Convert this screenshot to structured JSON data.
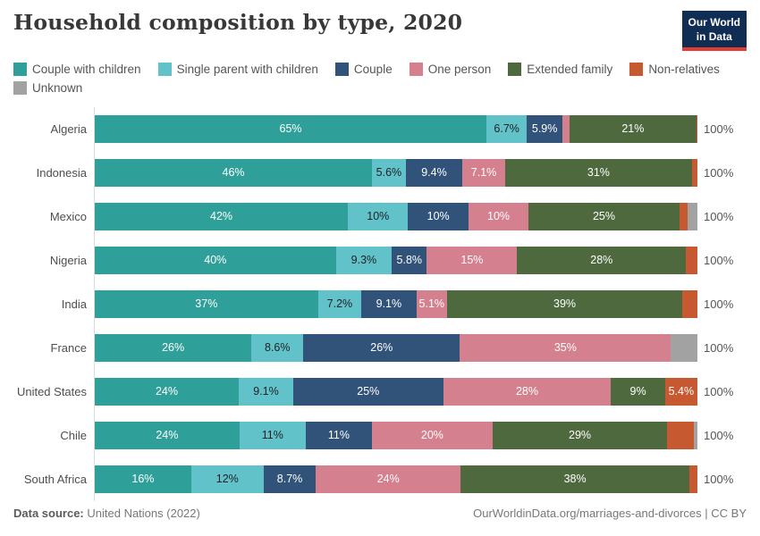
{
  "header": {
    "title": "Household composition by type, 2020",
    "logo_line1": "Our World",
    "logo_line2": "in Data"
  },
  "colors": {
    "logo_bg": "#102d54",
    "logo_stripe": "#e23d33",
    "axis_line": "#dcdcdc",
    "title_text": "#383838",
    "muted_text": "#555555"
  },
  "chart_data": {
    "type": "bar",
    "orientation": "horizontal-stacked",
    "title": "Household composition by type, 2020",
    "xlim": [
      0,
      100
    ],
    "legend_position": "top",
    "grid": false,
    "total_label": "100%",
    "categories": [
      "Algeria",
      "Indonesia",
      "Mexico",
      "Nigeria",
      "India",
      "France",
      "United States",
      "Chile",
      "South Africa"
    ],
    "series_meta": [
      {
        "name": "Couple with children",
        "color": "#2fa099",
        "label_color": "#ffffff"
      },
      {
        "name": "Single parent with children",
        "color": "#62c2c9",
        "label_color": "#1d2025"
      },
      {
        "name": "Couple",
        "color": "#315379",
        "label_color": "#ffffff"
      },
      {
        "name": "One person",
        "color": "#d5808e",
        "label_color": "#ffffff"
      },
      {
        "name": "Extended family",
        "color": "#4d693d",
        "label_color": "#ffffff"
      },
      {
        "name": "Non-relatives",
        "color": "#c6592f",
        "label_color": "#ffffff"
      },
      {
        "name": "Unknown",
        "color": "#a2a2a2",
        "label_color": "#ffffff"
      }
    ],
    "rows": [
      {
        "country": "Algeria",
        "total_label": "100%",
        "segments": [
          {
            "s": 0,
            "value": 65,
            "label": "65%"
          },
          {
            "s": 1,
            "value": 6.7,
            "label": "6.7%"
          },
          {
            "s": 2,
            "value": 5.9,
            "label": "5.9%"
          },
          {
            "s": 3,
            "value": 1.2,
            "label": ""
          },
          {
            "s": 4,
            "value": 21,
            "label": "21%"
          },
          {
            "s": 5,
            "value": 0.2,
            "label": ""
          }
        ]
      },
      {
        "country": "Indonesia",
        "total_label": "100%",
        "segments": [
          {
            "s": 0,
            "value": 46,
            "label": "46%"
          },
          {
            "s": 1,
            "value": 5.6,
            "label": "5.6%"
          },
          {
            "s": 2,
            "value": 9.4,
            "label": "9.4%"
          },
          {
            "s": 3,
            "value": 7.1,
            "label": "7.1%"
          },
          {
            "s": 4,
            "value": 31,
            "label": "31%"
          },
          {
            "s": 5,
            "value": 0.9,
            "label": ""
          }
        ]
      },
      {
        "country": "Mexico",
        "total_label": "100%",
        "segments": [
          {
            "s": 0,
            "value": 42,
            "label": "42%"
          },
          {
            "s": 1,
            "value": 10,
            "label": "10%"
          },
          {
            "s": 2,
            "value": 10,
            "label": "10%"
          },
          {
            "s": 3,
            "value": 10,
            "label": "10%"
          },
          {
            "s": 4,
            "value": 25,
            "label": "25%"
          },
          {
            "s": 5,
            "value": 1.3,
            "label": ""
          },
          {
            "s": 6,
            "value": 1.7,
            "label": ""
          }
        ]
      },
      {
        "country": "Nigeria",
        "total_label": "100%",
        "segments": [
          {
            "s": 0,
            "value": 40,
            "label": "40%"
          },
          {
            "s": 1,
            "value": 9.3,
            "label": "9.3%"
          },
          {
            "s": 2,
            "value": 5.8,
            "label": "5.8%"
          },
          {
            "s": 3,
            "value": 15,
            "label": "15%"
          },
          {
            "s": 4,
            "value": 28,
            "label": "28%"
          },
          {
            "s": 5,
            "value": 1.9,
            "label": ""
          }
        ]
      },
      {
        "country": "India",
        "total_label": "100%",
        "segments": [
          {
            "s": 0,
            "value": 37,
            "label": "37%"
          },
          {
            "s": 1,
            "value": 7.2,
            "label": "7.2%"
          },
          {
            "s": 2,
            "value": 9.1,
            "label": "9.1%"
          },
          {
            "s": 3,
            "value": 5.1,
            "label": "5.1%"
          },
          {
            "s": 4,
            "value": 39,
            "label": "39%"
          },
          {
            "s": 5,
            "value": 2.5,
            "label": ""
          }
        ]
      },
      {
        "country": "France",
        "total_label": "100%",
        "segments": [
          {
            "s": 0,
            "value": 26,
            "label": "26%"
          },
          {
            "s": 1,
            "value": 8.6,
            "label": "8.6%"
          },
          {
            "s": 2,
            "value": 26,
            "label": "26%"
          },
          {
            "s": 3,
            "value": 35,
            "label": "35%"
          },
          {
            "s": 6,
            "value": 4.4,
            "label": ""
          }
        ]
      },
      {
        "country": "United States",
        "total_label": "100%",
        "segments": [
          {
            "s": 0,
            "value": 24,
            "label": "24%"
          },
          {
            "s": 1,
            "value": 9.1,
            "label": "9.1%"
          },
          {
            "s": 2,
            "value": 25,
            "label": "25%"
          },
          {
            "s": 3,
            "value": 28,
            "label": "28%"
          },
          {
            "s": 4,
            "value": 9,
            "label": "9%"
          },
          {
            "s": 5,
            "value": 5.4,
            "label": "5.4%"
          }
        ]
      },
      {
        "country": "Chile",
        "total_label": "100%",
        "segments": [
          {
            "s": 0,
            "value": 24,
            "label": "24%"
          },
          {
            "s": 1,
            "value": 11,
            "label": "11%"
          },
          {
            "s": 2,
            "value": 11,
            "label": "11%"
          },
          {
            "s": 3,
            "value": 20,
            "label": "20%"
          },
          {
            "s": 4,
            "value": 29,
            "label": "29%"
          },
          {
            "s": 5,
            "value": 4.4,
            "label": ""
          },
          {
            "s": 6,
            "value": 0.6,
            "label": ""
          }
        ]
      },
      {
        "country": "South Africa",
        "total_label": "100%",
        "segments": [
          {
            "s": 0,
            "value": 16,
            "label": "16%"
          },
          {
            "s": 1,
            "value": 12,
            "label": "12%"
          },
          {
            "s": 2,
            "value": 8.7,
            "label": "8.7%"
          },
          {
            "s": 3,
            "value": 24,
            "label": "24%"
          },
          {
            "s": 4,
            "value": 38,
            "label": "38%"
          },
          {
            "s": 5,
            "value": 1.3,
            "label": ""
          }
        ]
      }
    ]
  },
  "footer": {
    "source_label": "Data source:",
    "source_value": "United Nations (2022)",
    "credit": "OurWorldinData.org/marriages-and-divorces | CC BY"
  }
}
